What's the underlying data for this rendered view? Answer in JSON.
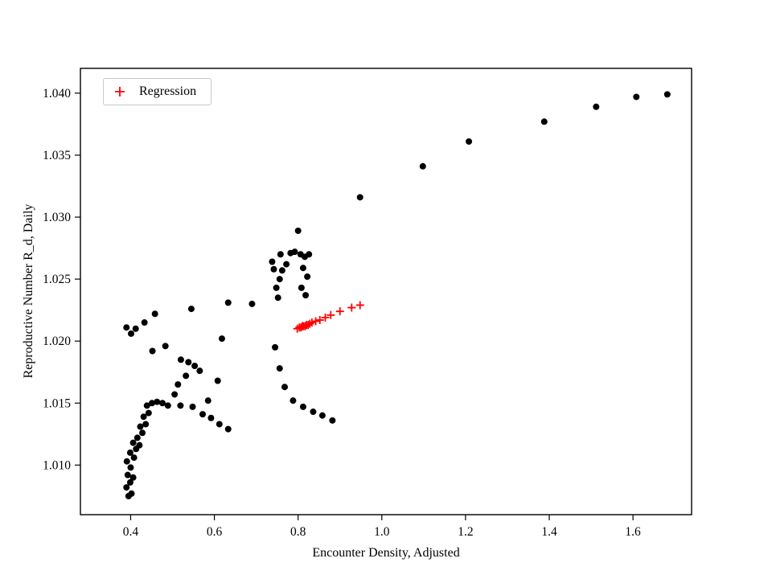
{
  "figure": {
    "background": "#ffffff",
    "frame_color": "#000000",
    "tick_label_color": "#000000"
  },
  "legend": {
    "entries": [
      {
        "label": "Regression",
        "marker": "plus",
        "color": "#ff0000"
      }
    ],
    "position": "upper left"
  },
  "chart_data": {
    "type": "scatter",
    "title": "",
    "xlabel": "Encounter Density, Adjusted",
    "ylabel": "Reproductive Number R_d, Daily",
    "xlim": [
      0.28,
      1.74
    ],
    "ylim": [
      1.006,
      1.042
    ],
    "xticks": [
      0.4,
      0.6,
      0.8,
      1.0,
      1.2,
      1.4,
      1.6
    ],
    "yticks": [
      1.01,
      1.015,
      1.02,
      1.025,
      1.03,
      1.035,
      1.04
    ],
    "grid": false,
    "legend_position": "upper left",
    "series": [
      {
        "name": "observations",
        "marker": "circle",
        "color": "#000000",
        "in_legend": false,
        "points": [
          [
            0.395,
            1.0075
          ],
          [
            0.402,
            1.0077
          ],
          [
            0.39,
            1.0082
          ],
          [
            0.399,
            1.0086
          ],
          [
            0.393,
            1.0092
          ],
          [
            0.406,
            1.009
          ],
          [
            0.4,
            1.0098
          ],
          [
            0.391,
            1.0103
          ],
          [
            0.408,
            1.0106
          ],
          [
            0.399,
            1.011
          ],
          [
            0.413,
            1.0113
          ],
          [
            0.406,
            1.0118
          ],
          [
            0.421,
            1.0116
          ],
          [
            0.416,
            1.0122
          ],
          [
            0.428,
            1.0126
          ],
          [
            0.423,
            1.0131
          ],
          [
            0.436,
            1.0133
          ],
          [
            0.431,
            1.0139
          ],
          [
            0.443,
            1.0142
          ],
          [
            0.439,
            1.0148
          ],
          [
            0.451,
            1.015
          ],
          [
            0.463,
            1.0151
          ],
          [
            0.476,
            1.015
          ],
          [
            0.489,
            1.0148
          ],
          [
            0.39,
            1.0211
          ],
          [
            0.401,
            1.0206
          ],
          [
            0.412,
            1.021
          ],
          [
            0.433,
            1.0215
          ],
          [
            0.458,
            1.0222
          ],
          [
            0.452,
            1.0192
          ],
          [
            0.483,
            1.0196
          ],
          [
            0.545,
            1.0226
          ],
          [
            0.52,
            1.0185
          ],
          [
            0.538,
            1.0183
          ],
          [
            0.553,
            1.018
          ],
          [
            0.532,
            1.0172
          ],
          [
            0.513,
            1.0165
          ],
          [
            0.505,
            1.0157
          ],
          [
            0.519,
            1.0148
          ],
          [
            0.548,
            1.0147
          ],
          [
            0.572,
            1.0141
          ],
          [
            0.592,
            1.0138
          ],
          [
            0.612,
            1.0133
          ],
          [
            0.633,
            1.0129
          ],
          [
            0.585,
            1.0152
          ],
          [
            0.608,
            1.0168
          ],
          [
            0.618,
            1.0202
          ],
          [
            0.633,
            1.0231
          ],
          [
            0.69,
            1.023
          ],
          [
            0.565,
            1.0176
          ],
          [
            0.745,
            1.0195
          ],
          [
            0.752,
            1.0235
          ],
          [
            0.748,
            1.0243
          ],
          [
            0.756,
            1.025
          ],
          [
            0.742,
            1.0258
          ],
          [
            0.762,
            1.0257
          ],
          [
            0.738,
            1.0264
          ],
          [
            0.772,
            1.0262
          ],
          [
            0.758,
            1.027
          ],
          [
            0.782,
            1.0271
          ],
          [
            0.8,
            1.0289
          ],
          [
            0.792,
            1.0272
          ],
          [
            0.806,
            1.027
          ],
          [
            0.816,
            1.0268
          ],
          [
            0.826,
            1.027
          ],
          [
            0.812,
            1.0259
          ],
          [
            0.822,
            1.0252
          ],
          [
            0.808,
            1.0243
          ],
          [
            0.818,
            1.0237
          ],
          [
            0.756,
            1.0178
          ],
          [
            0.768,
            1.0163
          ],
          [
            0.788,
            1.0152
          ],
          [
            0.812,
            1.0147
          ],
          [
            0.836,
            1.0143
          ],
          [
            0.858,
            1.014
          ],
          [
            0.882,
            1.0136
          ],
          [
            0.948,
            1.0316
          ],
          [
            1.098,
            1.0341
          ],
          [
            1.208,
            1.0361
          ],
          [
            1.388,
            1.0377
          ],
          [
            1.512,
            1.0389
          ],
          [
            1.608,
            1.0397
          ],
          [
            1.682,
            1.0399
          ]
        ]
      },
      {
        "name": "Regression",
        "marker": "plus",
        "color": "#ff0000",
        "in_legend": true,
        "points": [
          [
            0.798,
            1.021
          ],
          [
            0.803,
            1.0211
          ],
          [
            0.807,
            1.0211
          ],
          [
            0.81,
            1.0212
          ],
          [
            0.813,
            1.0212
          ],
          [
            0.817,
            1.0212
          ],
          [
            0.82,
            1.0213
          ],
          [
            0.824,
            1.0213
          ],
          [
            0.828,
            1.0214
          ],
          [
            0.833,
            1.0215
          ],
          [
            0.842,
            1.0216
          ],
          [
            0.852,
            1.0217
          ],
          [
            0.865,
            1.0219
          ],
          [
            0.878,
            1.0221
          ],
          [
            0.9,
            1.0224
          ],
          [
            0.928,
            1.0227
          ],
          [
            0.948,
            1.0229
          ]
        ]
      }
    ]
  }
}
